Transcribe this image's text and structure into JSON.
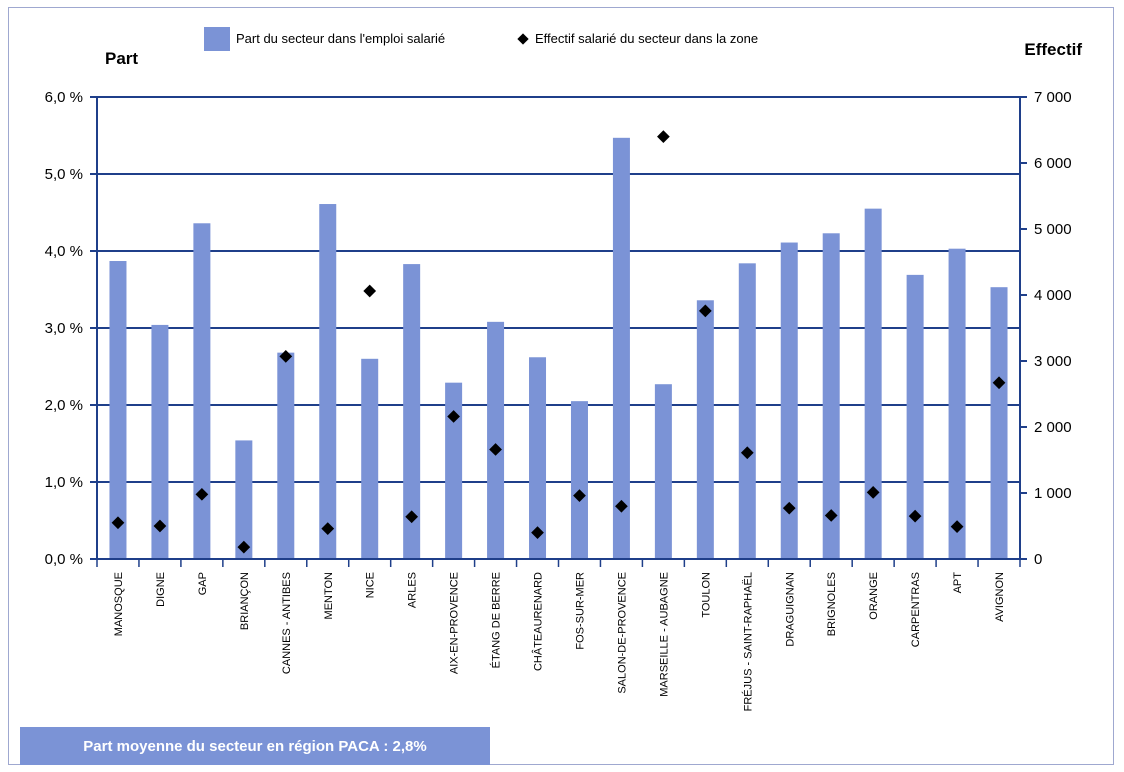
{
  "chart_data": {
    "type": "bar",
    "left_axis_title": "Part",
    "right_axis_title": "Effectif",
    "legend": {
      "bar_label": "Part du secteur dans l'emploi salarié",
      "point_label": "Effectif salarié du secteur dans la zone"
    },
    "left_ticks": [
      "0,0 %",
      "1,0 %",
      "2,0 %",
      "3,0 %",
      "4,0 %",
      "5,0 %",
      "6,0 %"
    ],
    "right_ticks": [
      "0",
      "1 000",
      "2 000",
      "3 000",
      "4 000",
      "5 000",
      "6 000",
      "7 000"
    ],
    "ylim_left": [
      0,
      6
    ],
    "ylim_right": [
      0,
      7000
    ],
    "categories": [
      "MANOSQUE",
      "DIGNE",
      "GAP",
      "BRIANÇON",
      "CANNES - ANTIBES",
      "MENTON",
      "NICE",
      "ARLES",
      "AIX-EN-PROVENCE",
      "ÉTANG DE BERRE",
      "CHÂTEAURENARD",
      "FOS-SUR-MER",
      "SALON-DE-PROVENCE",
      "MARSEILLE - AUBAGNE",
      "TOULON",
      "FRÉJUS - SAINT-RAPHAËL",
      "DRAGUIGNAN",
      "BRIGNOLES",
      "ORANGE",
      "CARPENTRAS",
      "APT",
      "AVIGNON"
    ],
    "series": [
      {
        "name": "Part du secteur dans l'emploi salarié",
        "axis": "left",
        "values": [
          3.87,
          3.04,
          4.36,
          1.54,
          2.68,
          4.61,
          2.6,
          3.83,
          2.29,
          3.08,
          2.62,
          2.05,
          5.47,
          2.27,
          3.36,
          3.84,
          4.11,
          4.23,
          4.55,
          3.69,
          4.03,
          3.53
        ]
      },
      {
        "name": "Effectif salarié du secteur dans la zone",
        "axis": "right",
        "values": [
          550,
          500,
          980,
          180,
          3070,
          460,
          4060,
          640,
          2160,
          1660,
          400,
          960,
          800,
          6400,
          3760,
          1610,
          770,
          660,
          1010,
          650,
          490,
          2670
        ]
      }
    ],
    "colors": {
      "bar": "#7b93d6",
      "axis": "#1f3f8a",
      "marker": "#000000"
    }
  },
  "footer": {
    "text": "Part moyenne du secteur en région PACA :  2,8%"
  }
}
